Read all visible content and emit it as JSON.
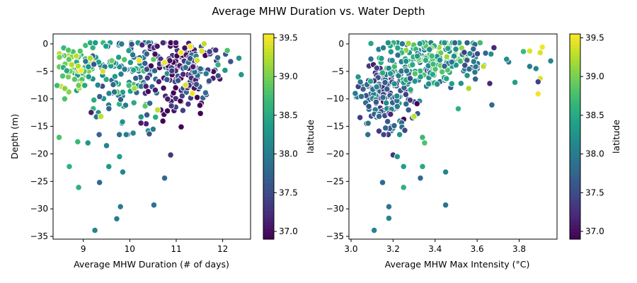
{
  "figure": {
    "suptitle": "Average MHW Duration vs. Water Depth"
  },
  "colorbar": {
    "label": "latitude",
    "range": [
      36.9,
      39.55
    ],
    "ticks": [
      37.0,
      37.5,
      38.0,
      38.5,
      39.0,
      39.5
    ],
    "colormap": "viridis"
  },
  "chart_data": [
    {
      "type": "scatter",
      "title": "",
      "xlabel": "Average MHW Duration (# of days)",
      "ylabel": "Depth (m)",
      "xlim": [
        8.35,
        12.6
      ],
      "ylim": [
        -35.5,
        1.8
      ],
      "xticks": [
        9,
        10,
        11,
        12
      ],
      "yticks": [
        0,
        -5,
        -10,
        -15,
        -20,
        -25,
        -30,
        -35
      ],
      "color_by": "latitude",
      "points": [
        {
          "x": 8.48,
          "y": -17.0,
          "c": 38.8
        },
        {
          "x": 8.6,
          "y": -10.0,
          "c": 38.8
        },
        {
          "x": 8.7,
          "y": -22.3,
          "c": 38.6
        },
        {
          "x": 8.88,
          "y": -17.8,
          "c": 38.7
        },
        {
          "x": 8.9,
          "y": -26.1,
          "c": 38.6
        },
        {
          "x": 9.1,
          "y": -18.0,
          "c": 38.3
        },
        {
          "x": 9.25,
          "y": -33.9,
          "c": 38.1
        },
        {
          "x": 9.35,
          "y": -25.2,
          "c": 37.8
        },
        {
          "x": 9.38,
          "y": -13.2,
          "c": 39.3
        },
        {
          "x": 9.5,
          "y": -18.5,
          "c": 38.1
        },
        {
          "x": 9.55,
          "y": -22.3,
          "c": 38.3
        },
        {
          "x": 9.72,
          "y": -31.8,
          "c": 38.0
        },
        {
          "x": 9.78,
          "y": -20.5,
          "c": 38.4
        },
        {
          "x": 9.8,
          "y": -29.6,
          "c": 38.0
        },
        {
          "x": 9.85,
          "y": -23.3,
          "c": 38.1
        },
        {
          "x": 10.52,
          "y": -29.3,
          "c": 37.9
        },
        {
          "x": 10.75,
          "y": -24.4,
          "c": 37.8
        },
        {
          "x": 10.88,
          "y": -20.2,
          "c": 37.3
        },
        {
          "x": 12.4,
          "y": -5.6,
          "c": 38.3
        },
        {
          "x": 12.35,
          "y": -2.6,
          "c": 38.3
        },
        {
          "x": 12.05,
          "y": -4.8,
          "c": 38.3
        },
        {
          "x": 12.1,
          "y": -1.2,
          "c": 38.8
        },
        {
          "x": 11.9,
          "y": -3.8,
          "c": 38.6
        },
        {
          "x": 11.55,
          "y": -1.3,
          "c": 39.4
        },
        {
          "x": 11.6,
          "y": 0.0,
          "c": 39.3
        },
        {
          "x": 11.3,
          "y": -0.5,
          "c": 39.5
        },
        {
          "x": 11.1,
          "y": -1.6,
          "c": 39.5
        },
        {
          "x": 11.45,
          "y": -3.0,
          "c": 39.4
        },
        {
          "x": 11.2,
          "y": -7.5,
          "c": 39.4
        },
        {
          "x": 11.35,
          "y": -9.0,
          "c": 39.5
        },
        {
          "x": 10.75,
          "y": -3.4,
          "c": 39.5
        },
        {
          "x": 10.6,
          "y": -12.0,
          "c": 39.3
        },
        {
          "x": 10.1,
          "y": -8.1,
          "c": 39.2
        },
        {
          "x": 10.2,
          "y": -3.0,
          "c": 39.5
        },
        {
          "x": 9.42,
          "y": -5.0,
          "c": 39.4
        },
        {
          "x": 8.85,
          "y": -2.2,
          "c": 39.3
        },
        {
          "x": 9.15,
          "y": -2.6,
          "c": 39.2
        },
        {
          "x": 10.8,
          "y": -6.5,
          "c": 37.6
        }
      ]
    },
    {
      "type": "scatter",
      "title": "",
      "xlabel": "Average MHW Max Intensity (°C)",
      "ylabel": "",
      "xlim": [
        2.99,
        3.98
      ],
      "ylim": [
        -35.5,
        1.8
      ],
      "xticks": [
        3.0,
        3.2,
        3.4,
        3.6,
        3.8
      ],
      "yticks": [
        0,
        -5,
        -10,
        -15,
        -20,
        -25,
        -30,
        -35
      ],
      "color_by": "latitude",
      "points": [
        {
          "x": 3.02,
          "y": -9.0,
          "c": 38.0
        },
        {
          "x": 3.08,
          "y": -16.5,
          "c": 37.9
        },
        {
          "x": 3.11,
          "y": -33.9,
          "c": 38.1
        },
        {
          "x": 3.15,
          "y": -25.2,
          "c": 37.8
        },
        {
          "x": 3.18,
          "y": -29.6,
          "c": 37.9
        },
        {
          "x": 3.18,
          "y": -31.7,
          "c": 38.1
        },
        {
          "x": 3.2,
          "y": -20.2,
          "c": 37.3
        },
        {
          "x": 3.22,
          "y": -20.5,
          "c": 38.3
        },
        {
          "x": 3.25,
          "y": -22.3,
          "c": 38.4
        },
        {
          "x": 3.25,
          "y": -26.1,
          "c": 38.6
        },
        {
          "x": 3.33,
          "y": -24.4,
          "c": 37.8
        },
        {
          "x": 3.34,
          "y": -22.3,
          "c": 38.5
        },
        {
          "x": 3.34,
          "y": -17.0,
          "c": 38.7
        },
        {
          "x": 3.35,
          "y": -18.0,
          "c": 38.8
        },
        {
          "x": 3.45,
          "y": -29.3,
          "c": 37.9
        },
        {
          "x": 3.45,
          "y": -23.3,
          "c": 38.1
        },
        {
          "x": 3.67,
          "y": -11.1,
          "c": 37.8
        },
        {
          "x": 3.66,
          "y": -7.2,
          "c": 37.2
        },
        {
          "x": 3.68,
          "y": -0.7,
          "c": 37.2
        },
        {
          "x": 3.63,
          "y": -4.1,
          "c": 39.3
        },
        {
          "x": 3.56,
          "y": -8.1,
          "c": 39.2
        },
        {
          "x": 3.51,
          "y": -11.8,
          "c": 38.6
        },
        {
          "x": 3.3,
          "y": -13.2,
          "c": 39.3
        },
        {
          "x": 3.78,
          "y": -7.0,
          "c": 38.4
        },
        {
          "x": 3.75,
          "y": -3.3,
          "c": 38.0
        },
        {
          "x": 3.74,
          "y": -2.8,
          "c": 38.2
        },
        {
          "x": 3.85,
          "y": -1.3,
          "c": 39.4
        },
        {
          "x": 3.85,
          "y": -4.1,
          "c": 38.0
        },
        {
          "x": 3.88,
          "y": -4.5,
          "c": 38.1
        },
        {
          "x": 3.9,
          "y": -6.3,
          "c": 39.4
        },
        {
          "x": 3.89,
          "y": -9.1,
          "c": 39.5
        },
        {
          "x": 3.89,
          "y": -6.9,
          "c": 37.4
        },
        {
          "x": 3.91,
          "y": -0.6,
          "c": 39.5
        },
        {
          "x": 3.9,
          "y": -1.6,
          "c": 39.4
        },
        {
          "x": 3.95,
          "y": -3.1,
          "c": 38.1
        },
        {
          "x": 3.82,
          "y": -1.4,
          "c": 38.7
        }
      ]
    }
  ]
}
